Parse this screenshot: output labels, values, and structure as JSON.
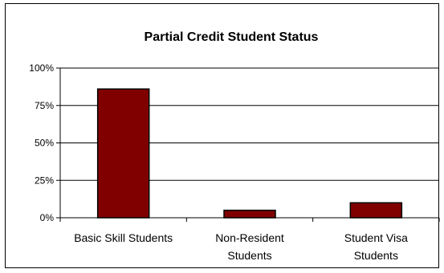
{
  "chart_data": {
    "type": "bar",
    "title": "Partial Credit Student Status",
    "categories": [
      [
        "Basic Skill Students"
      ],
      [
        "Non-Resident",
        "Students"
      ],
      [
        "Student Visa",
        "Students"
      ]
    ],
    "series": [
      {
        "values": [
          86,
          5,
          10
        ]
      }
    ],
    "ylim": [
      0,
      100
    ],
    "yticks": [
      0,
      25,
      50,
      75,
      100
    ],
    "ytick_labels": [
      "0%",
      "25%",
      "50%",
      "75%",
      "100%"
    ],
    "grid": true,
    "legend": "none",
    "bar_color": "#800000"
  }
}
